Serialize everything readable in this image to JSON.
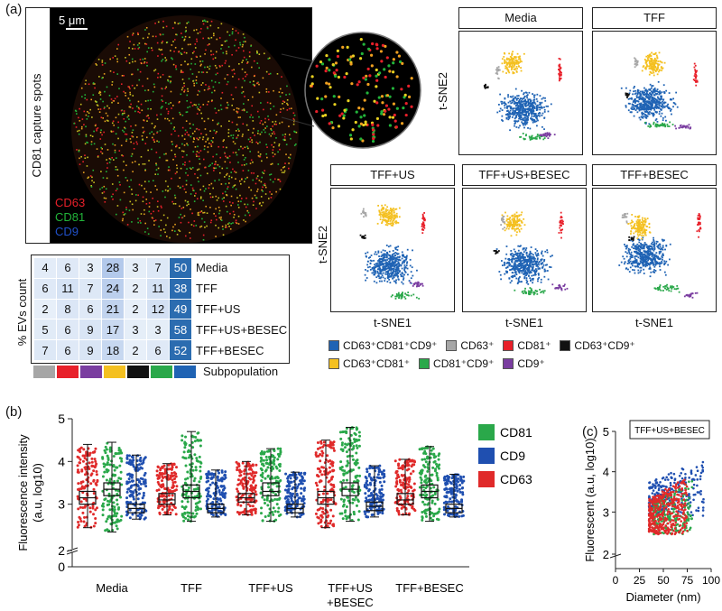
{
  "panels": {
    "a": "(a)",
    "b": "(b)",
    "c": "(c)"
  },
  "microscopy": {
    "scale_label": "5 μm",
    "side_label": "CD81 capture spots",
    "channels": [
      {
        "name": "CD63",
        "color": "#e8202a"
      },
      {
        "name": "CD81",
        "color": "#22b43a"
      },
      {
        "name": "CD9",
        "color": "#2050c8"
      }
    ]
  },
  "heatmap": {
    "ylabel": "% EVs count",
    "xlabel": "Subpopulation",
    "rows": [
      "Media",
      "TFF",
      "TFF+US",
      "TFF+US+BESEC",
      "TFF+BESEC"
    ],
    "values": [
      [
        4,
        6,
        3,
        28,
        3,
        7,
        50
      ],
      [
        6,
        11,
        7,
        24,
        2,
        11,
        38
      ],
      [
        2,
        8,
        6,
        21,
        2,
        12,
        49
      ],
      [
        5,
        6,
        9,
        17,
        3,
        3,
        58
      ],
      [
        7,
        6,
        9,
        18,
        2,
        6,
        52
      ]
    ],
    "subpop_colors": [
      "#a6a6a6",
      "#e8202a",
      "#7a3da0",
      "#f4c020",
      "#111111",
      "#2aa84a",
      "#1f63b4"
    ]
  },
  "tsne": {
    "xlabel": "t-SNE1",
    "ylabel": "t-SNE2",
    "panels": [
      "Media",
      "TFF",
      "TFF+US",
      "TFF+US+BESEC",
      "TFF+BESEC"
    ],
    "legend": [
      {
        "label": "CD63⁺CD81⁺CD9⁺",
        "color": "#1f63b4"
      },
      {
        "label": "CD63⁺",
        "color": "#a6a6a6"
      },
      {
        "label": "CD81⁺",
        "color": "#e8202a"
      },
      {
        "label": "CD63⁺CD9⁺",
        "color": "#111111"
      },
      {
        "label": "CD63⁺CD81⁺",
        "color": "#f4c020"
      },
      {
        "label": "CD81⁺CD9⁺",
        "color": "#2aa84a"
      },
      {
        "label": "CD9⁺",
        "color": "#7a3da0"
      }
    ]
  },
  "chart_data": [
    {
      "type": "box",
      "ylabel": "Fluorescence intensity\n(a.u, log10)",
      "ylim": [
        0,
        5
      ],
      "yticks": [
        "0",
        "2",
        "3",
        "4",
        "5"
      ],
      "categories": [
        "Media",
        "TFF",
        "TFF+US",
        "TFF+US\n+BESEC",
        "TFF+BESEC"
      ],
      "legend": [
        {
          "name": "CD81",
          "color": "#2aa84a"
        },
        {
          "name": "CD9",
          "color": "#1f4fb0"
        },
        {
          "name": "CD63",
          "color": "#e02a2a"
        }
      ],
      "series": [
        {
          "name": "CD63",
          "color": "#e02a2a",
          "boxes": [
            {
              "min": 2.45,
              "q1": 3.0,
              "median": 3.15,
              "q3": 3.3,
              "max": 4.4
            },
            {
              "min": 2.75,
              "q1": 3.0,
              "median": 3.1,
              "q3": 3.25,
              "max": 3.95
            },
            {
              "min": 2.75,
              "q1": 3.05,
              "median": 3.15,
              "q3": 3.25,
              "max": 4.0
            },
            {
              "min": 2.45,
              "q1": 3.0,
              "median": 3.15,
              "q3": 3.3,
              "max": 4.5
            },
            {
              "min": 2.75,
              "q1": 3.0,
              "median": 3.1,
              "q3": 3.25,
              "max": 4.05
            }
          ]
        },
        {
          "name": "CD81",
          "color": "#2aa84a",
          "boxes": [
            {
              "min": 2.35,
              "q1": 3.2,
              "median": 3.35,
              "q3": 3.5,
              "max": 4.45
            },
            {
              "min": 2.6,
              "q1": 3.15,
              "median": 3.3,
              "q3": 3.45,
              "max": 4.7
            },
            {
              "min": 2.6,
              "q1": 3.2,
              "median": 3.3,
              "q3": 3.5,
              "max": 4.3
            },
            {
              "min": 2.6,
              "q1": 3.2,
              "median": 3.35,
              "q3": 3.5,
              "max": 4.8
            },
            {
              "min": 2.6,
              "q1": 3.15,
              "median": 3.3,
              "q3": 3.45,
              "max": 4.35
            }
          ]
        },
        {
          "name": "CD9",
          "color": "#1f4fb0",
          "boxes": [
            {
              "min": 2.65,
              "q1": 2.8,
              "median": 2.9,
              "q3": 3.0,
              "max": 4.15
            },
            {
              "min": 2.7,
              "q1": 2.8,
              "median": 2.9,
              "q3": 3.0,
              "max": 3.8
            },
            {
              "min": 2.7,
              "q1": 2.8,
              "median": 2.9,
              "q3": 3.0,
              "max": 3.75
            },
            {
              "min": 2.7,
              "q1": 2.85,
              "median": 2.95,
              "q3": 3.05,
              "max": 3.9
            },
            {
              "min": 2.7,
              "q1": 2.8,
              "median": 2.9,
              "q3": 3.0,
              "max": 3.7
            }
          ]
        }
      ]
    },
    {
      "type": "scatter",
      "label": "TFF+US+BESEC",
      "xlabel": "Diameter  (nm)",
      "ylabel": "Fluorescent (a.u, log10)",
      "xlim": [
        0,
        100
      ],
      "ylim": [
        0,
        5
      ],
      "xticks": [
        "0",
        "25",
        "50",
        "75",
        "100"
      ],
      "yticks": [
        "2",
        "3",
        "4",
        "5"
      ],
      "series": [
        {
          "name": "CD9",
          "color": "#1f4fb0",
          "x_range": [
            35,
            92
          ],
          "y_range": [
            2.9,
            4.3
          ]
        },
        {
          "name": "CD81",
          "color": "#2aa84a",
          "x_range": [
            40,
            80
          ],
          "y_range": [
            2.45,
            3.8
          ]
        },
        {
          "name": "CD63",
          "color": "#e02a2a",
          "x_range": [
            35,
            75
          ],
          "y_range": [
            2.45,
            3.9
          ]
        }
      ]
    }
  ]
}
